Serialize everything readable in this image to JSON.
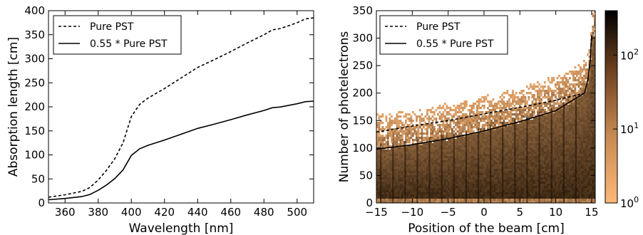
{
  "chart_data": [
    {
      "type": "line",
      "xlabel": "Wavelength [nm]",
      "ylabel": "Absorption length [cm]",
      "xlim": [
        350,
        510
      ],
      "ylim": [
        0,
        400
      ],
      "xticks": [
        360,
        380,
        400,
        420,
        440,
        460,
        480,
        500
      ],
      "yticks": [
        0,
        50,
        100,
        150,
        200,
        250,
        300,
        350,
        400
      ],
      "grid": false,
      "legend_position": "top-left",
      "series": [
        {
          "name": "Pure PST",
          "style": "dashed",
          "x": [
            350,
            360,
            370,
            375,
            380,
            385,
            390,
            395,
            400,
            405,
            410,
            420,
            430,
            440,
            450,
            460,
            470,
            480,
            485,
            490,
            500,
            505,
            510
          ],
          "y": [
            12,
            17,
            24,
            32,
            48,
            68,
            92,
            125,
            180,
            205,
            218,
            238,
            260,
            282,
            298,
            315,
            333,
            350,
            360,
            363,
            375,
            383,
            385
          ]
        },
        {
          "name": "0.55 * Pure PST",
          "style": "solid",
          "x": [
            350,
            360,
            370,
            375,
            380,
            385,
            390,
            395,
            400,
            405,
            410,
            420,
            430,
            440,
            450,
            460,
            470,
            480,
            485,
            490,
            500,
            505,
            510
          ],
          "y": [
            6.6,
            9.4,
            13.2,
            17.6,
            26.4,
            37.4,
            50.6,
            68.8,
            99,
            112.8,
            119.9,
            130.9,
            143,
            155.1,
            163.9,
            173.3,
            183.2,
            192.5,
            198,
            199.7,
            206.3,
            210.7,
            211.8
          ]
        }
      ]
    },
    {
      "type": "heatmap",
      "xlabel": "Position of the beam [cm]",
      "ylabel": "Number of photelectrons",
      "xlim": [
        -15,
        15.5
      ],
      "ylim": [
        0,
        350
      ],
      "xticks": [
        -15,
        -10,
        -5,
        0,
        5,
        10,
        15
      ],
      "yticks": [
        0,
        50,
        100,
        150,
        200,
        250,
        300,
        350
      ],
      "colorbar": {
        "scale": "log",
        "ticks": [
          "10^0",
          "10^1",
          "10^2"
        ],
        "colors": [
          "#fdb878",
          "#a0673c",
          "#000000"
        ]
      },
      "legend_position": "top-left",
      "series": [
        {
          "name": "Pure PST",
          "style": "dashed",
          "x": [
            -15,
            -10,
            -5,
            0,
            5,
            10,
            14
          ],
          "y": [
            129,
            140,
            150,
            162,
            174,
            187,
            200
          ]
        },
        {
          "name": "0.55 * Pure PST",
          "style": "solid",
          "x": [
            -15,
            -10,
            -5,
            0,
            5,
            10,
            14,
            14.5,
            14.8,
            15
          ],
          "y": [
            98,
            106,
            117,
            131,
            148,
            168,
            200,
            225,
            260,
            305
          ]
        }
      ]
    }
  ]
}
